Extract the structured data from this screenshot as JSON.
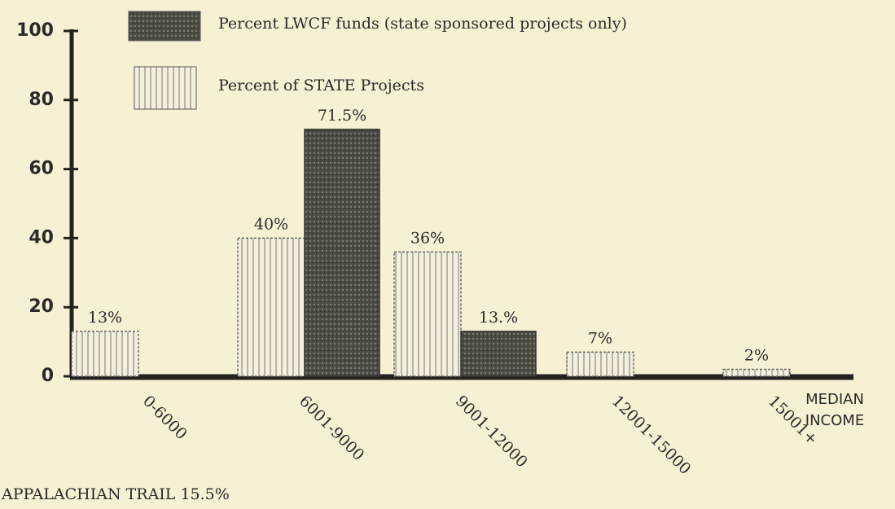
{
  "chart_data": {
    "type": "bar",
    "categories": [
      "0-6000",
      "6001-9000",
      "9001-12000",
      "12001-15000",
      "15001+"
    ],
    "series": [
      {
        "name": "Percent of STATE Projects",
        "color": "#f4f0de",
        "values": [
          13,
          40,
          36,
          7,
          2
        ],
        "value_labels": [
          "13%",
          "40%",
          "36%",
          "7%",
          "2%"
        ]
      },
      {
        "name": "Percent LWCF funds (state sponsored projects only)",
        "color": "#4d4d47",
        "values": [
          null,
          71.5,
          13,
          null,
          null
        ],
        "value_labels": [
          null,
          "71.5%",
          "13.%",
          null,
          null
        ]
      }
    ],
    "ylim": [
      0,
      100
    ],
    "yticks": [
      0,
      20,
      40,
      60,
      80,
      100
    ],
    "x_label": "MEDIAN INCOME",
    "annotation": "APPALACHIAN TRAIL 15.5%"
  }
}
